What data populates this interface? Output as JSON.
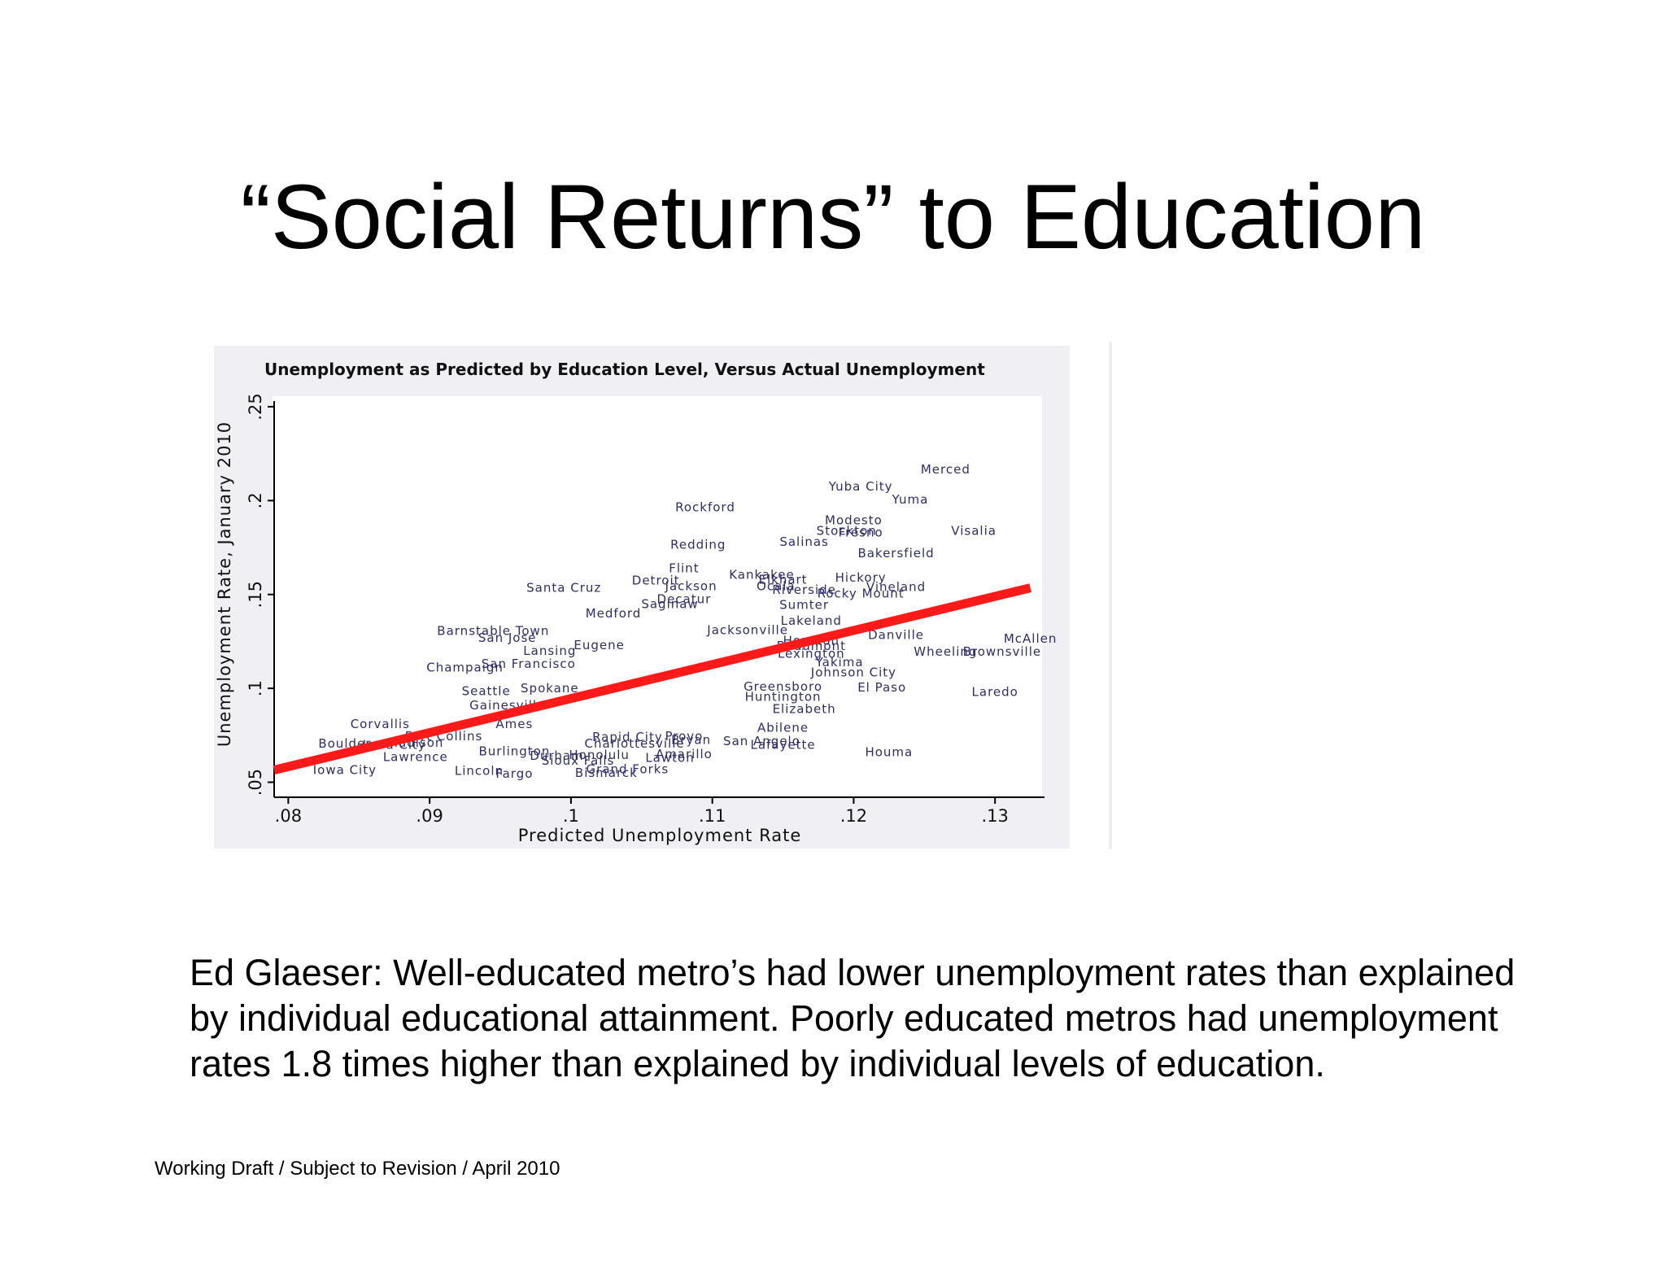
{
  "slide": {
    "title": "“Social Returns” to Education",
    "body": "Ed Glaeser:  Well-educated metro’s had lower unemployment rates than explained by individual educational attainment.   Poorly educated metros had unemployment rates 1.8 times higher than explained by individual levels of education.",
    "footer": "Working Draft / Subject to Revision / April 2010"
  },
  "colors": {
    "plot_background": "#efeff4",
    "label_color": "#2e2d6a",
    "fit_line": "#ff1a1a"
  },
  "chart_data": {
    "type": "scatter",
    "title": "Unemployment as Predicted by Education Level, Versus Actual Unemployment",
    "xlabel": "Predicted Unemployment Rate",
    "ylabel": "Unemployment Rate, January 2010",
    "xlim": [
      0.079,
      0.1335
    ],
    "ylim": [
      0.042,
      0.253
    ],
    "xticks": [
      {
        "value": 0.08,
        "label": ".08"
      },
      {
        "value": 0.09,
        "label": ".09"
      },
      {
        "value": 0.1,
        "label": ".1"
      },
      {
        "value": 0.11,
        "label": ".11"
      },
      {
        "value": 0.12,
        "label": ".12"
      },
      {
        "value": 0.13,
        "label": ".13"
      }
    ],
    "yticks": [
      {
        "value": 0.05,
        "label": ".05"
      },
      {
        "value": 0.1,
        "label": ".1"
      },
      {
        "value": 0.15,
        "label": ".15"
      },
      {
        "value": 0.2,
        "label": ".2"
      },
      {
        "value": 0.25,
        "label": ".25"
      }
    ],
    "grid": false,
    "fit_line": {
      "x": [
        0.079,
        0.1325
      ],
      "y": [
        0.0565,
        0.1535
      ]
    },
    "points": [
      {
        "label": "Merced",
        "x": 0.1265,
        "y": 0.2165
      },
      {
        "label": "Yuba City",
        "x": 0.1205,
        "y": 0.2075
      },
      {
        "label": "Yuma",
        "x": 0.124,
        "y": 0.2005
      },
      {
        "label": "Rockford",
        "x": 0.1095,
        "y": 0.1965
      },
      {
        "label": "Modesto",
        "x": 0.12,
        "y": 0.1895
      },
      {
        "label": "Stockton",
        "x": 0.1195,
        "y": 0.184
      },
      {
        "label": "Fresno",
        "x": 0.1205,
        "y": 0.183
      },
      {
        "label": "Visalia",
        "x": 0.1285,
        "y": 0.184
      },
      {
        "label": "Redding",
        "x": 0.109,
        "y": 0.1765
      },
      {
        "label": "Salinas",
        "x": 0.1165,
        "y": 0.178
      },
      {
        "label": "Bakersfield",
        "x": 0.123,
        "y": 0.172
      },
      {
        "label": "Flint",
        "x": 0.108,
        "y": 0.164
      },
      {
        "label": "Kankakee",
        "x": 0.1135,
        "y": 0.1605
      },
      {
        "label": "Detroit",
        "x": 0.106,
        "y": 0.1575
      },
      {
        "label": "Elkhart",
        "x": 0.115,
        "y": 0.158
      },
      {
        "label": "Hickory",
        "x": 0.1205,
        "y": 0.159
      },
      {
        "label": "Santa Cruz",
        "x": 0.0995,
        "y": 0.1535
      },
      {
        "label": "Jackson",
        "x": 0.1085,
        "y": 0.1545
      },
      {
        "label": "Ocala",
        "x": 0.1145,
        "y": 0.1545
      },
      {
        "label": "Riverside",
        "x": 0.1165,
        "y": 0.1525
      },
      {
        "label": "Vineland",
        "x": 0.123,
        "y": 0.154
      },
      {
        "label": "Rocky Mount",
        "x": 0.1205,
        "y": 0.1505
      },
      {
        "label": "Decatur",
        "x": 0.108,
        "y": 0.1475
      },
      {
        "label": "Saginaw",
        "x": 0.107,
        "y": 0.145
      },
      {
        "label": "Sumter",
        "x": 0.1165,
        "y": 0.1445
      },
      {
        "label": "Medford",
        "x": 0.103,
        "y": 0.14
      },
      {
        "label": "Lakeland",
        "x": 0.117,
        "y": 0.136
      },
      {
        "label": "Barnstable Town",
        "x": 0.0945,
        "y": 0.1305
      },
      {
        "label": "San Jose",
        "x": 0.0955,
        "y": 0.127
      },
      {
        "label": "Danville",
        "x": 0.123,
        "y": 0.1285
      },
      {
        "label": "McAllen",
        "x": 0.1325,
        "y": 0.1265
      },
      {
        "label": "Jacksonville",
        "x": 0.1125,
        "y": 0.131
      },
      {
        "label": "Lansing",
        "x": 0.0985,
        "y": 0.12
      },
      {
        "label": "Eugene",
        "x": 0.102,
        "y": 0.123
      },
      {
        "label": "Beaumont",
        "x": 0.117,
        "y": 0.1225
      },
      {
        "label": "Houston",
        "x": 0.117,
        "y": 0.1255
      },
      {
        "label": "Wheeling",
        "x": 0.1265,
        "y": 0.1195
      },
      {
        "label": "Brownsville",
        "x": 0.1305,
        "y": 0.1195
      },
      {
        "label": "Lexington",
        "x": 0.117,
        "y": 0.1185
      },
      {
        "label": "Champaign",
        "x": 0.0925,
        "y": 0.111
      },
      {
        "label": "San Francisco",
        "x": 0.097,
        "y": 0.113
      },
      {
        "label": "Yakima",
        "x": 0.119,
        "y": 0.114
      },
      {
        "label": "Johnson City",
        "x": 0.12,
        "y": 0.1085
      },
      {
        "label": "El Paso",
        "x": 0.122,
        "y": 0.1005
      },
      {
        "label": "Laredo",
        "x": 0.13,
        "y": 0.098
      },
      {
        "label": "Seattle",
        "x": 0.094,
        "y": 0.0985
      },
      {
        "label": "Spokane",
        "x": 0.0985,
        "y": 0.1
      },
      {
        "label": "Huntington",
        "x": 0.115,
        "y": 0.0955
      },
      {
        "label": "Gainesville",
        "x": 0.0955,
        "y": 0.091
      },
      {
        "label": "Greensboro",
        "x": 0.115,
        "y": 0.101
      },
      {
        "label": "Elizabeth",
        "x": 0.1165,
        "y": 0.089
      },
      {
        "label": "Corvallis",
        "x": 0.0865,
        "y": 0.081
      },
      {
        "label": "Fort Collins",
        "x": 0.091,
        "y": 0.0745
      },
      {
        "label": "Ames",
        "x": 0.096,
        "y": 0.081
      },
      {
        "label": "Abilene",
        "x": 0.115,
        "y": 0.079
      },
      {
        "label": "Boulder",
        "x": 0.084,
        "y": 0.0705
      },
      {
        "label": "Madison",
        "x": 0.089,
        "y": 0.071
      },
      {
        "label": "Bryan",
        "x": 0.1085,
        "y": 0.0725
      },
      {
        "label": "Provo",
        "x": 0.108,
        "y": 0.0745
      },
      {
        "label": "Rapid City",
        "x": 0.104,
        "y": 0.074
      },
      {
        "label": "Charlottesville",
        "x": 0.1045,
        "y": 0.0705
      },
      {
        "label": "Iowa City",
        "x": 0.0875,
        "y": 0.07
      },
      {
        "label": "Lafayette",
        "x": 0.115,
        "y": 0.07
      },
      {
        "label": "San Angelo",
        "x": 0.1135,
        "y": 0.072
      },
      {
        "label": "Burlington",
        "x": 0.096,
        "y": 0.0665
      },
      {
        "label": "Houma",
        "x": 0.1225,
        "y": 0.066
      },
      {
        "label": "Lawrence",
        "x": 0.089,
        "y": 0.0635
      },
      {
        "label": "Durham",
        "x": 0.099,
        "y": 0.064
      },
      {
        "label": "Honolulu",
        "x": 0.102,
        "y": 0.0645
      },
      {
        "label": "Lawton",
        "x": 0.107,
        "y": 0.063
      },
      {
        "label": "Amarillo",
        "x": 0.108,
        "y": 0.065
      },
      {
        "label": "Sioux Falls",
        "x": 0.1005,
        "y": 0.0615
      },
      {
        "label": "Iowa City",
        "x": 0.084,
        "y": 0.0565
      },
      {
        "label": "Lincoln",
        "x": 0.0935,
        "y": 0.056
      },
      {
        "label": "Fargo",
        "x": 0.096,
        "y": 0.0545
      },
      {
        "label": "Bismarck",
        "x": 0.1025,
        "y": 0.055
      },
      {
        "label": "Grand Forks",
        "x": 0.104,
        "y": 0.057
      }
    ]
  }
}
